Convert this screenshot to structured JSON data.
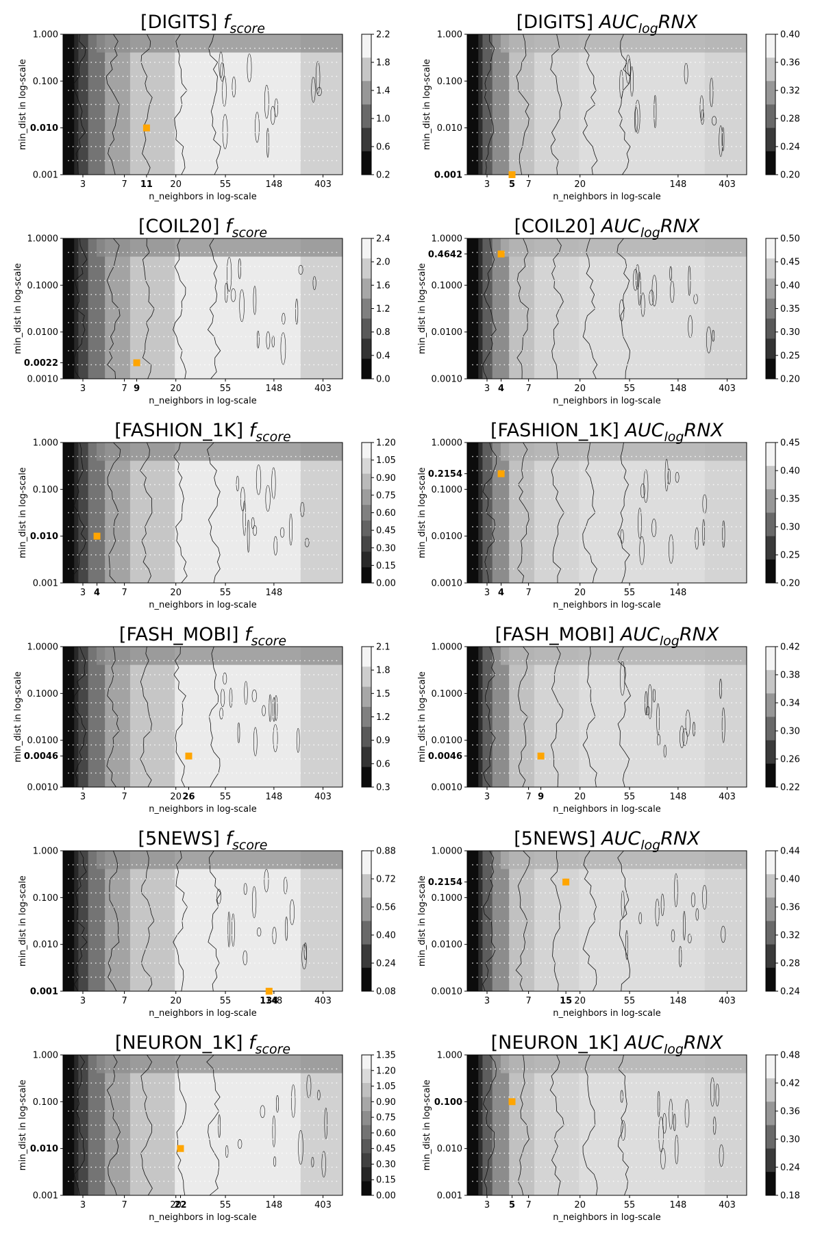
{
  "figure": {
    "xlabel": "n_neighbors in log-scale",
    "ylabel": "min_dist in log-scale",
    "marker_color": "#ffa500"
  },
  "chart_data": [
    {
      "type": "heatmap",
      "title": "[DIGITS] ",
      "metric": "score",
      "metric_style": "f",
      "xticks": [
        "3",
        "7",
        "11",
        "20",
        "55",
        "148",
        "403"
      ],
      "xticks_bold": [
        "11"
      ],
      "yticks": [
        "1.000",
        "0.100",
        "0.010",
        "0.001"
      ],
      "ytick_bold": "0.010",
      "colorbar_ticks": [
        "2.2",
        "1.8",
        "1.4",
        "1.0",
        "0.6",
        "0.2"
      ],
      "best": {
        "n_neighbors": 11,
        "min_dist": 0.01
      }
    },
    {
      "type": "heatmap",
      "title": "[DIGITS] ",
      "metric": "logRNX",
      "metric_style": "auc",
      "xticks": [
        "3",
        "5",
        "7",
        "20",
        "148",
        "403"
      ],
      "xticks_bold": [
        "5"
      ],
      "yticks": [
        "1.000",
        "0.100",
        "0.010",
        "0.001"
      ],
      "ytick_bold": "0.001",
      "colorbar_ticks": [
        "0.40",
        "0.36",
        "0.32",
        "0.28",
        "0.24",
        "0.20"
      ],
      "best": {
        "n_neighbors": 5,
        "min_dist": 0.001
      }
    },
    {
      "type": "heatmap",
      "title": "[COIL20] ",
      "metric": "score",
      "metric_style": "f",
      "xticks": [
        "3",
        "7",
        "9",
        "20",
        "55",
        "148",
        "403"
      ],
      "xticks_bold": [
        "9"
      ],
      "yticks": [
        "1.0000",
        "0.1000",
        "0.0100",
        "0.0022",
        "0.0010"
      ],
      "ytick_bold": "0.0022",
      "colorbar_ticks": [
        "2.4",
        "2.0",
        "1.6",
        "1.2",
        "0.8",
        "0.4",
        "0.0"
      ],
      "best": {
        "n_neighbors": 9,
        "min_dist": 0.0022
      }
    },
    {
      "type": "heatmap",
      "title": "[COIL20] ",
      "metric": "logRNX",
      "metric_style": "auc",
      "xticks": [
        "3",
        "4",
        "7",
        "20",
        "55",
        "148",
        "403"
      ],
      "xticks_bold": [
        "4"
      ],
      "yticks": [
        "1.0000",
        "0.4642",
        "0.1000",
        "0.0100",
        "0.0010"
      ],
      "ytick_bold": "0.4642",
      "colorbar_ticks": [
        "0.50",
        "0.45",
        "0.40",
        "0.35",
        "0.30",
        "0.25",
        "0.20"
      ],
      "best": {
        "n_neighbors": 4,
        "min_dist": 0.4642
      }
    },
    {
      "type": "heatmap",
      "title": "[FASHION_1K] ",
      "metric": "score",
      "metric_style": "f",
      "xticks": [
        "3",
        "4",
        "7",
        "20",
        "55",
        "148"
      ],
      "xticks_bold": [
        "4"
      ],
      "yticks": [
        "1.000",
        "0.100",
        "0.010",
        "0.001"
      ],
      "ytick_bold": "0.010",
      "colorbar_ticks": [
        "1.20",
        "1.05",
        "0.90",
        "0.75",
        "0.60",
        "0.45",
        "0.30",
        "0.15",
        "0.00"
      ],
      "best": {
        "n_neighbors": 4,
        "min_dist": 0.01
      }
    },
    {
      "type": "heatmap",
      "title": "[FASHION_1K] ",
      "metric": "logRNX",
      "metric_style": "auc",
      "xticks": [
        "3",
        "4",
        "7",
        "20",
        "55",
        "148"
      ],
      "xticks_bold": [
        "4"
      ],
      "yticks": [
        "1.0000",
        "0.2154",
        "0.1000",
        "0.0100",
        "0.0010"
      ],
      "ytick_bold": "0.2154",
      "colorbar_ticks": [
        "0.45",
        "0.40",
        "0.35",
        "0.30",
        "0.25",
        "0.20"
      ],
      "best": {
        "n_neighbors": 4,
        "min_dist": 0.2154
      }
    },
    {
      "type": "heatmap",
      "title": "[FASH_MOBI] ",
      "metric": "score",
      "metric_style": "f",
      "xticks": [
        "3",
        "7",
        "20",
        "26",
        "55",
        "148",
        "403"
      ],
      "xticks_bold": [
        "26"
      ],
      "yticks": [
        "1.0000",
        "0.1000",
        "0.0100",
        "0.0046",
        "0.0010"
      ],
      "ytick_bold": "0.0046",
      "colorbar_ticks": [
        "2.1",
        "1.8",
        "1.5",
        "1.2",
        "0.9",
        "0.6",
        "0.3"
      ],
      "best": {
        "n_neighbors": 26,
        "min_dist": 0.0046
      }
    },
    {
      "type": "heatmap",
      "title": "[FASH_MOBI] ",
      "metric": "logRNX",
      "metric_style": "auc",
      "xticks": [
        "3",
        "7",
        "9",
        "20",
        "55",
        "148",
        "403"
      ],
      "xticks_bold": [
        "9"
      ],
      "yticks": [
        "1.0000",
        "0.1000",
        "0.0100",
        "0.0046",
        "0.0010"
      ],
      "ytick_bold": "0.0046",
      "colorbar_ticks": [
        "0.42",
        "0.38",
        "0.34",
        "0.30",
        "0.26",
        "0.22"
      ],
      "best": {
        "n_neighbors": 9,
        "min_dist": 0.0046
      }
    },
    {
      "type": "heatmap",
      "title": "[5NEWS] ",
      "metric": "score",
      "metric_style": "f",
      "xticks": [
        "3",
        "7",
        "20",
        "55",
        "134",
        "148",
        "403"
      ],
      "xticks_bold": [
        "134"
      ],
      "yticks": [
        "1.000",
        "0.100",
        "0.010",
        "0.001"
      ],
      "ytick_bold": "0.001",
      "colorbar_ticks": [
        "0.88",
        "0.72",
        "0.56",
        "0.40",
        "0.24",
        "0.08"
      ],
      "best": {
        "n_neighbors": 134,
        "min_dist": 0.001
      }
    },
    {
      "type": "heatmap",
      "title": "[5NEWS] ",
      "metric": "logRNX",
      "metric_style": "auc",
      "xticks": [
        "3",
        "7",
        "15",
        "20",
        "55",
        "148",
        "403"
      ],
      "xticks_bold": [
        "15"
      ],
      "yticks": [
        "1.0000",
        "0.2154",
        "0.1000",
        "0.0100",
        "0.0010"
      ],
      "ytick_bold": "0.2154",
      "colorbar_ticks": [
        "0.44",
        "0.40",
        "0.36",
        "0.32",
        "0.28",
        "0.24"
      ],
      "best": {
        "n_neighbors": 15,
        "min_dist": 0.2154
      }
    },
    {
      "type": "heatmap",
      "title": "[NEURON_1K] ",
      "metric": "score",
      "metric_style": "f",
      "xticks": [
        "3",
        "7",
        "20",
        "22",
        "55",
        "148",
        "403"
      ],
      "xticks_bold": [
        "22"
      ],
      "yticks": [
        "1.000",
        "0.100",
        "0.010",
        "0.001"
      ],
      "ytick_bold": "0.010",
      "colorbar_ticks": [
        "1.35",
        "1.20",
        "1.05",
        "0.90",
        "0.75",
        "0.60",
        "0.45",
        "0.30",
        "0.15",
        "0.00"
      ],
      "best": {
        "n_neighbors": 22,
        "min_dist": 0.01
      }
    },
    {
      "type": "heatmap",
      "title": "[NEURON_1K] ",
      "metric": "logRNX",
      "metric_style": "auc",
      "xticks": [
        "3",
        "5",
        "7",
        "20",
        "55",
        "148",
        "403"
      ],
      "xticks_bold": [
        "5"
      ],
      "yticks": [
        "1.000",
        "0.100",
        "0.010",
        "0.001"
      ],
      "ytick_bold": "0.100",
      "colorbar_ticks": [
        "0.48",
        "0.42",
        "0.36",
        "0.30",
        "0.24",
        "0.18"
      ],
      "best": {
        "n_neighbors": 5,
        "min_dist": 0.1
      }
    }
  ]
}
